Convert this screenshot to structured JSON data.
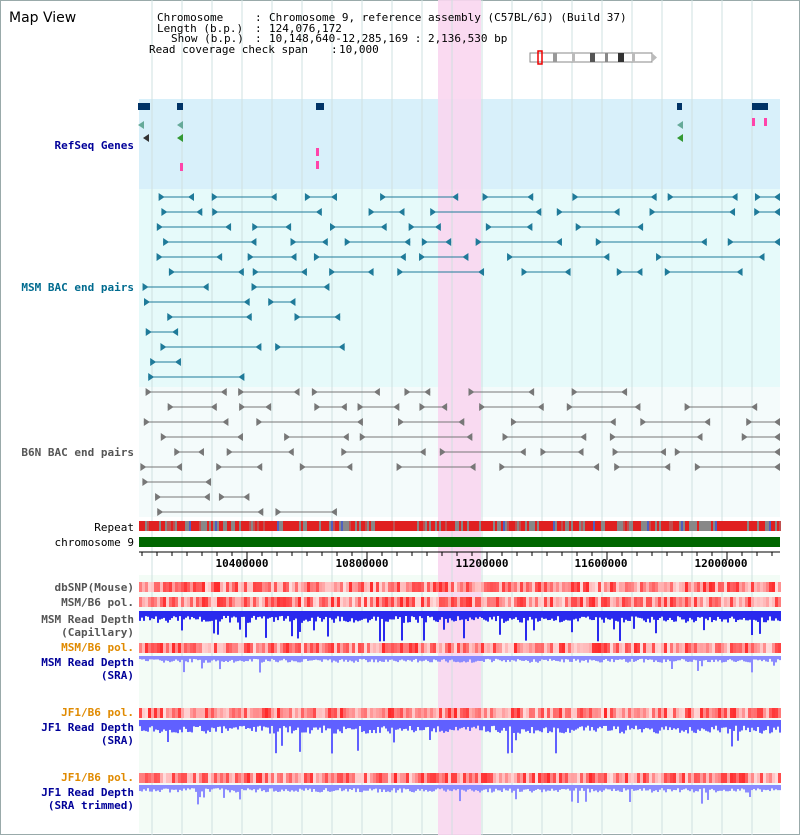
{
  "page_title": "Map View",
  "info": {
    "chromosome_label": "Chromosome",
    "chromosome_value": "Chromosome 9, reference assembly (C57BL/6J) (Build 37)",
    "length_label": "Length (b.p.)",
    "length_value": "124,076,172",
    "show_label": "Show (b.p.)",
    "show_value": "10,148,640-12,285,169 : 2,136,530 bp",
    "coverage_label": "Read coverage check span",
    "coverage_value": "10,000",
    "sep": ":"
  },
  "tracks": {
    "refseq": "RefSeq Genes",
    "msm_bac": "MSM BAC end pairs",
    "b6n_bac": "B6N BAC end pairs",
    "repeat": "Repeat",
    "chromosome": "chromosome 9",
    "dbsnp": "dbSNP(Mouse)",
    "msm_b6_pol_1": "MSM/B6 pol.",
    "msm_depth_cap_1": "MSM Read Depth",
    "msm_depth_cap_2": "(Capillary)",
    "msm_b6_pol_2": "MSM/B6 pol.",
    "msm_depth_sra_1": "MSM Read Depth",
    "msm_depth_sra_2": "(SRA)",
    "jf1_b6_pol_1": "JF1/B6 pol.",
    "jf1_depth_sra_1": "JF1 Read Depth",
    "jf1_depth_sra_2": "(SRA)",
    "jf1_b6_pol_2": "JF1/B6 pol.",
    "jf1_depth_trim_1": "JF1 Read Depth",
    "jf1_depth_trim_2": "(SRA trimmed)"
  },
  "axis": {
    "ticks": [
      "10400000",
      "10800000",
      "11200000",
      "11600000",
      "12000000"
    ]
  },
  "colors": {
    "refseq_bg": "#d8f0fa",
    "msm_bg": "#e6fafa",
    "b6n_bg": "#f0fafa",
    "highlight": "#f9d6f0",
    "refseq_label": "#000099",
    "msm_label": "#006b8f",
    "b6n_label": "#555555",
    "pol_label": "#e08a00",
    "depth_label": "#000099",
    "chromosome_bar": "#006600"
  }
}
